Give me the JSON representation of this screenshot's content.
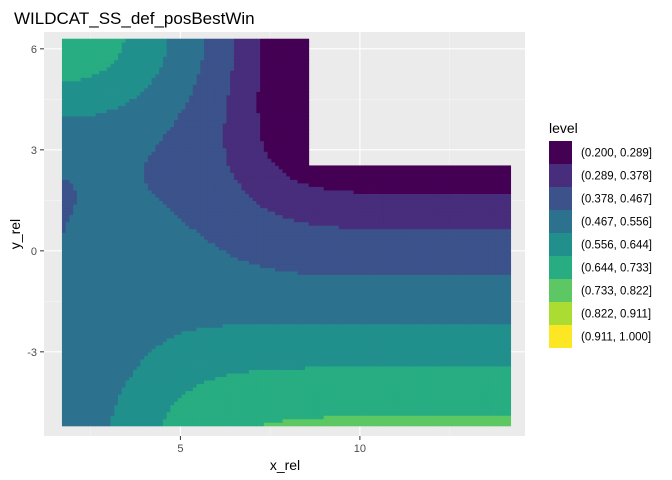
{
  "chart_data": {
    "type": "contour",
    "title": "WILDCAT_SS_def_posBestWin",
    "xlabel": "x_rel",
    "ylabel": "y_rel",
    "xlim": [
      1.2,
      14.6
    ],
    "ylim": [
      -5.5,
      6.5
    ],
    "x_ticks": [
      5,
      10
    ],
    "x_tick_labels": [
      "5",
      "10"
    ],
    "y_ticks": [
      -3,
      0,
      3,
      6
    ],
    "y_tick_labels": [
      "-3",
      "0",
      "3",
      "6"
    ],
    "data_x_range": [
      1.7,
      14.2
    ],
    "data_y_range": [
      -5.2,
      6.3
    ],
    "grid": true,
    "legend_position": "right",
    "legend": {
      "title": "level",
      "entries": [
        {
          "label": "(0.200, 0.289]",
          "color": "#440154"
        },
        {
          "label": "(0.289, 0.378]",
          "color": "#472D7B"
        },
        {
          "label": "(0.378, 0.467]",
          "color": "#3B528B"
        },
        {
          "label": "(0.467, 0.556]",
          "color": "#2C728E"
        },
        {
          "label": "(0.556, 0.644]",
          "color": "#21908C"
        },
        {
          "label": "(0.644, 0.733]",
          "color": "#27AD81"
        },
        {
          "label": "(0.733, 0.822]",
          "color": "#5DC863"
        },
        {
          "label": "(0.822, 0.911]",
          "color": "#AADC32"
        },
        {
          "label": "(0.911, 1.000]",
          "color": "#FDE725"
        }
      ]
    },
    "breaks": [
      0.2,
      0.289,
      0.378,
      0.467,
      0.556,
      0.644,
      0.733,
      0.822,
      0.911,
      1.0
    ]
  }
}
